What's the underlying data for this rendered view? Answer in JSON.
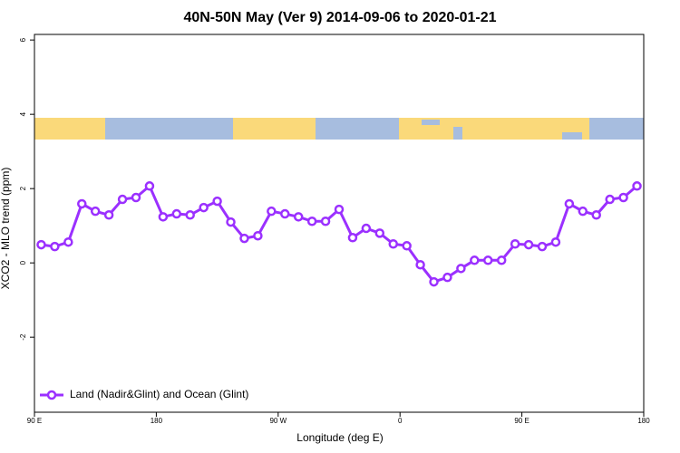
{
  "chart_data": {
    "type": "line",
    "title": "40N-50N May (Ver 9)   2014-09-06 to 2020-01-21",
    "x_label": "Longitude (deg E)",
    "y_label": "XCO2 - MLO trend (ppm)",
    "x": [
      95,
      105,
      115,
      125,
      135,
      145,
      155,
      165,
      175,
      185,
      195,
      205,
      215,
      225,
      235,
      245,
      255,
      265,
      275,
      285,
      295,
      305,
      315,
      325,
      335,
      345,
      355,
      365,
      375,
      385,
      395,
      405,
      415,
      425,
      435,
      445,
      455,
      465,
      475,
      485,
      495,
      505,
      515,
      525,
      535
    ],
    "series": [
      {
        "name": "Land (Nadir&Glint) and Ocean (Glint)",
        "color": "#9b30ff",
        "values": [
          0.49,
          0.44,
          0.56,
          1.59,
          1.39,
          1.29,
          1.71,
          1.76,
          2.07,
          1.24,
          1.32,
          1.29,
          1.49,
          1.66,
          1.1,
          0.66,
          0.73,
          1.39,
          1.32,
          1.24,
          1.12,
          1.12,
          1.44,
          0.68,
          0.93,
          0.8,
          0.51,
          0.46,
          -0.05,
          -0.51,
          -0.39,
          -0.15,
          0.07,
          0.07,
          0.07,
          0.51,
          0.49,
          0.44,
          0.56,
          1.59,
          1.39,
          1.29,
          1.71,
          1.76,
          2.07
        ]
      }
    ],
    "xlim": [
      90,
      540
    ],
    "xticks": [
      {
        "value": 90,
        "label": "90 E"
      },
      180,
      {
        "value": 270,
        "label": "90 W"
      },
      {
        "value": 360,
        "label": "0"
      },
      {
        "value": 450,
        "label": "90 E"
      },
      {
        "value": 540,
        "label": "180"
      }
    ],
    "ylim": [
      -4.02,
      6.15
    ],
    "yticks": [
      6,
      4,
      2,
      0,
      -2
    ],
    "legend": "bottom-left"
  }
}
